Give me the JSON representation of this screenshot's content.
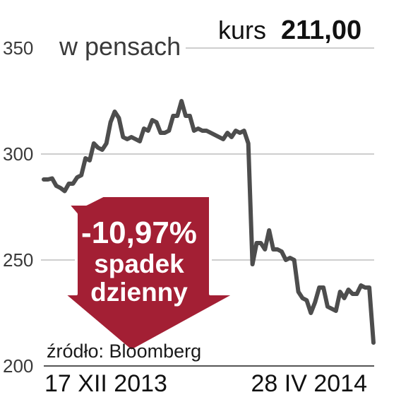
{
  "header": {
    "unit": "w pensach",
    "kurs_label": "kurs",
    "kurs_value": "211,00"
  },
  "badge": {
    "change": "-10,97%",
    "line1": "spadek",
    "line2": "dzienny",
    "color": "#a31f34"
  },
  "source": "źródło: Bloomberg",
  "colors": {
    "line": "#4d4d4d",
    "grid": "#bdbdbd",
    "badge": "#a31f34"
  },
  "chart_data": {
    "type": "line",
    "title": "",
    "ylabel": "w pensach",
    "ylim": [
      200,
      350
    ],
    "yticks": [
      "350",
      "300",
      "250",
      "200"
    ],
    "grid": true,
    "x_start_label": "17 XII 2013",
    "x_end_label": "28 IV 2014",
    "series": [
      {
        "values": [
          288,
          288,
          288.5,
          285,
          284,
          282.5,
          286,
          286,
          289,
          290,
          298,
          297,
          305,
          303,
          302,
          305,
          315,
          320,
          317,
          308,
          307,
          308,
          307,
          306,
          312,
          311,
          316,
          315,
          310,
          310,
          311,
          318,
          318,
          325,
          318,
          318,
          311,
          312,
          311,
          311,
          310,
          309,
          308,
          307,
          310,
          308,
          311,
          310,
          311,
          305,
          248,
          258,
          258,
          255,
          264,
          255,
          255,
          254,
          250,
          251,
          250,
          235,
          232,
          231,
          225,
          230,
          237,
          237,
          228,
          227,
          226,
          235,
          232,
          236,
          234,
          234,
          238,
          237,
          237,
          211
        ]
      }
    ]
  }
}
